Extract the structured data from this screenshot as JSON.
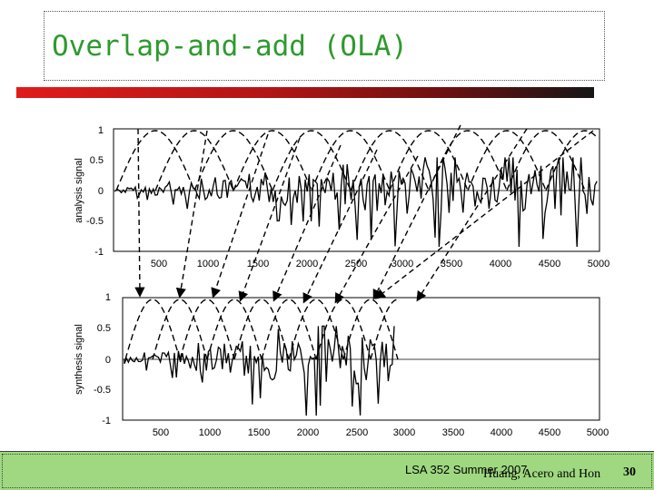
{
  "slide": {
    "title": "Overlap-and-add (OLA)",
    "footer_course": "LSA 352 Summer 2007",
    "footer_credit": "Huang, Acero and Hon",
    "page_number": "30"
  },
  "figure": {
    "top_panel": {
      "ylabel": "analysis signal",
      "yticks": [
        "1",
        "0.5",
        "0",
        "-0.5",
        "-1"
      ],
      "xticks": [
        "500",
        "1000",
        "1500",
        "2000",
        "2500",
        "3000",
        "3500",
        "4000",
        "4500",
        "5000"
      ]
    },
    "bottom_panel": {
      "ylabel": "synthesis signal",
      "yticks": [
        "1",
        "0.5",
        "0",
        "-0.5",
        "-1"
      ],
      "xticks": [
        "500",
        "1000",
        "1500",
        "2000",
        "2500",
        "3000",
        "3500",
        "4000",
        "4500",
        "5000"
      ]
    }
  },
  "colors": {
    "title": "#2e9a2e",
    "footer_bg": "#9fd880",
    "bar_start": "#e01b1b",
    "bar_end": "#161616"
  }
}
